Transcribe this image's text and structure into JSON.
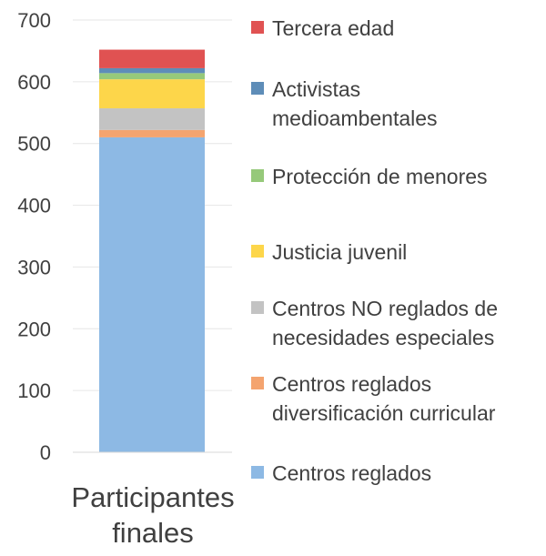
{
  "chart_data": {
    "type": "bar",
    "stacked": true,
    "categories": [
      "Participantes finales"
    ],
    "ylim": [
      0,
      700
    ],
    "yticks": [
      0,
      100,
      200,
      300,
      400,
      500,
      600,
      700
    ],
    "grid": true,
    "legend_position": "right",
    "series": [
      {
        "name": "Centros reglados",
        "values": [
          510
        ],
        "color": "#8DB9E4"
      },
      {
        "name": "Centros reglados diversificación curricular",
        "values": [
          12
        ],
        "color": "#F4A46F"
      },
      {
        "name": "Centros NO reglados de necesidades especiales",
        "values": [
          35
        ],
        "color": "#C3C3C3"
      },
      {
        "name": "Justicia juvenil",
        "values": [
          47
        ],
        "color": "#FDD64A"
      },
      {
        "name": "Protección de menores",
        "values": [
          10
        ],
        "color": "#96C97A"
      },
      {
        "name": "Activistas medioambentales",
        "values": [
          8
        ],
        "color": "#5E8DB8"
      },
      {
        "name": "Tercera edad",
        "values": [
          30
        ],
        "color": "#E05252"
      }
    ]
  }
}
